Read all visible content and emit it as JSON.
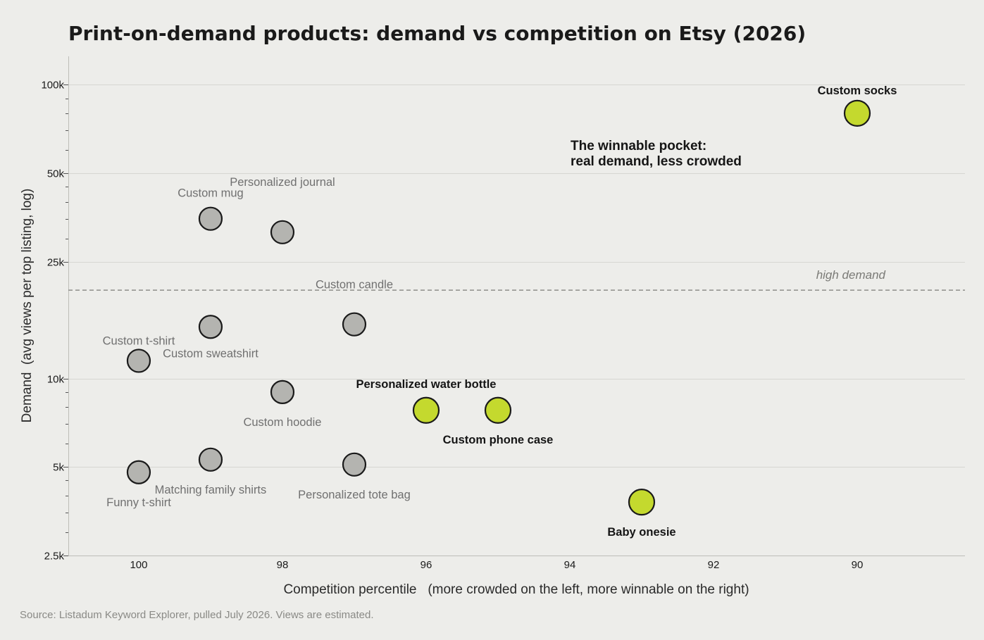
{
  "chart_data": {
    "type": "scatter",
    "title": "Print-on-demand products: demand vs competition on Etsy (2026)",
    "xlabel": "Competition percentile   (more crowded on the left, more winnable on the right)",
    "ylabel": "Demand  (avg views per top listing, log)",
    "source": "Source: Listadum Keyword Explorer, pulled July 2026. Views are estimated.",
    "x_scale": "linear",
    "x_reversed": true,
    "xlim": [
      100.98,
      88.5
    ],
    "y_scale": "log",
    "ylim": [
      2500,
      125000
    ],
    "x_ticks": [
      {
        "value": 100,
        "label": "100"
      },
      {
        "value": 98,
        "label": "98"
      },
      {
        "value": 96,
        "label": "96"
      },
      {
        "value": 94,
        "label": "94"
      },
      {
        "value": 92,
        "label": "92"
      },
      {
        "value": 90,
        "label": "90"
      }
    ],
    "y_ticks": [
      {
        "value": 2500,
        "label": "2.5k"
      },
      {
        "value": 5000,
        "label": "5k"
      },
      {
        "value": 10000,
        "label": "10k"
      },
      {
        "value": 25000,
        "label": "25k"
      },
      {
        "value": 50000,
        "label": "50k"
      },
      {
        "value": 100000,
        "label": "100k"
      }
    ],
    "grid": true,
    "reference_line": {
      "y": 20000,
      "label": "high demand"
    },
    "annotation": [
      "The winnable pocket:",
      "real demand, less crowded"
    ],
    "colors": {
      "crowded": "#b4b4b0",
      "winnable": "#c4d92e",
      "outline": "#1a1a1a"
    },
    "points": [
      {
        "label": "Custom socks",
        "x": 90,
        "y": 80000,
        "group": "winnable"
      },
      {
        "label": "Personalized water bottle",
        "x": 95,
        "y": 7800,
        "group": "winnable"
      },
      {
        "label": "Custom phone case",
        "x": 96,
        "y": 7800,
        "group": "winnable"
      },
      {
        "label": "Baby onesie",
        "x": 93,
        "y": 3800,
        "group": "winnable"
      },
      {
        "label": "Custom mug",
        "x": 99,
        "y": 35000,
        "group": "crowded"
      },
      {
        "label": "Personalized journal",
        "x": 98,
        "y": 31500,
        "group": "crowded"
      },
      {
        "label": "Custom candle",
        "x": 97,
        "y": 15300,
        "group": "crowded"
      },
      {
        "label": "Custom t-shirt",
        "x": 99,
        "y": 15000,
        "group": "crowded"
      },
      {
        "label": "Custom sweatshirt",
        "x": 100,
        "y": 11500,
        "group": "crowded"
      },
      {
        "label": "Custom hoodie",
        "x": 98,
        "y": 9000,
        "group": "crowded"
      },
      {
        "label": "Matching family shirts",
        "x": 99,
        "y": 5300,
        "group": "crowded"
      },
      {
        "label": "Personalized tote bag",
        "x": 97,
        "y": 5100,
        "group": "crowded"
      },
      {
        "label": "Funny t-shirt",
        "x": 100,
        "y": 4800,
        "group": "crowded"
      }
    ]
  }
}
